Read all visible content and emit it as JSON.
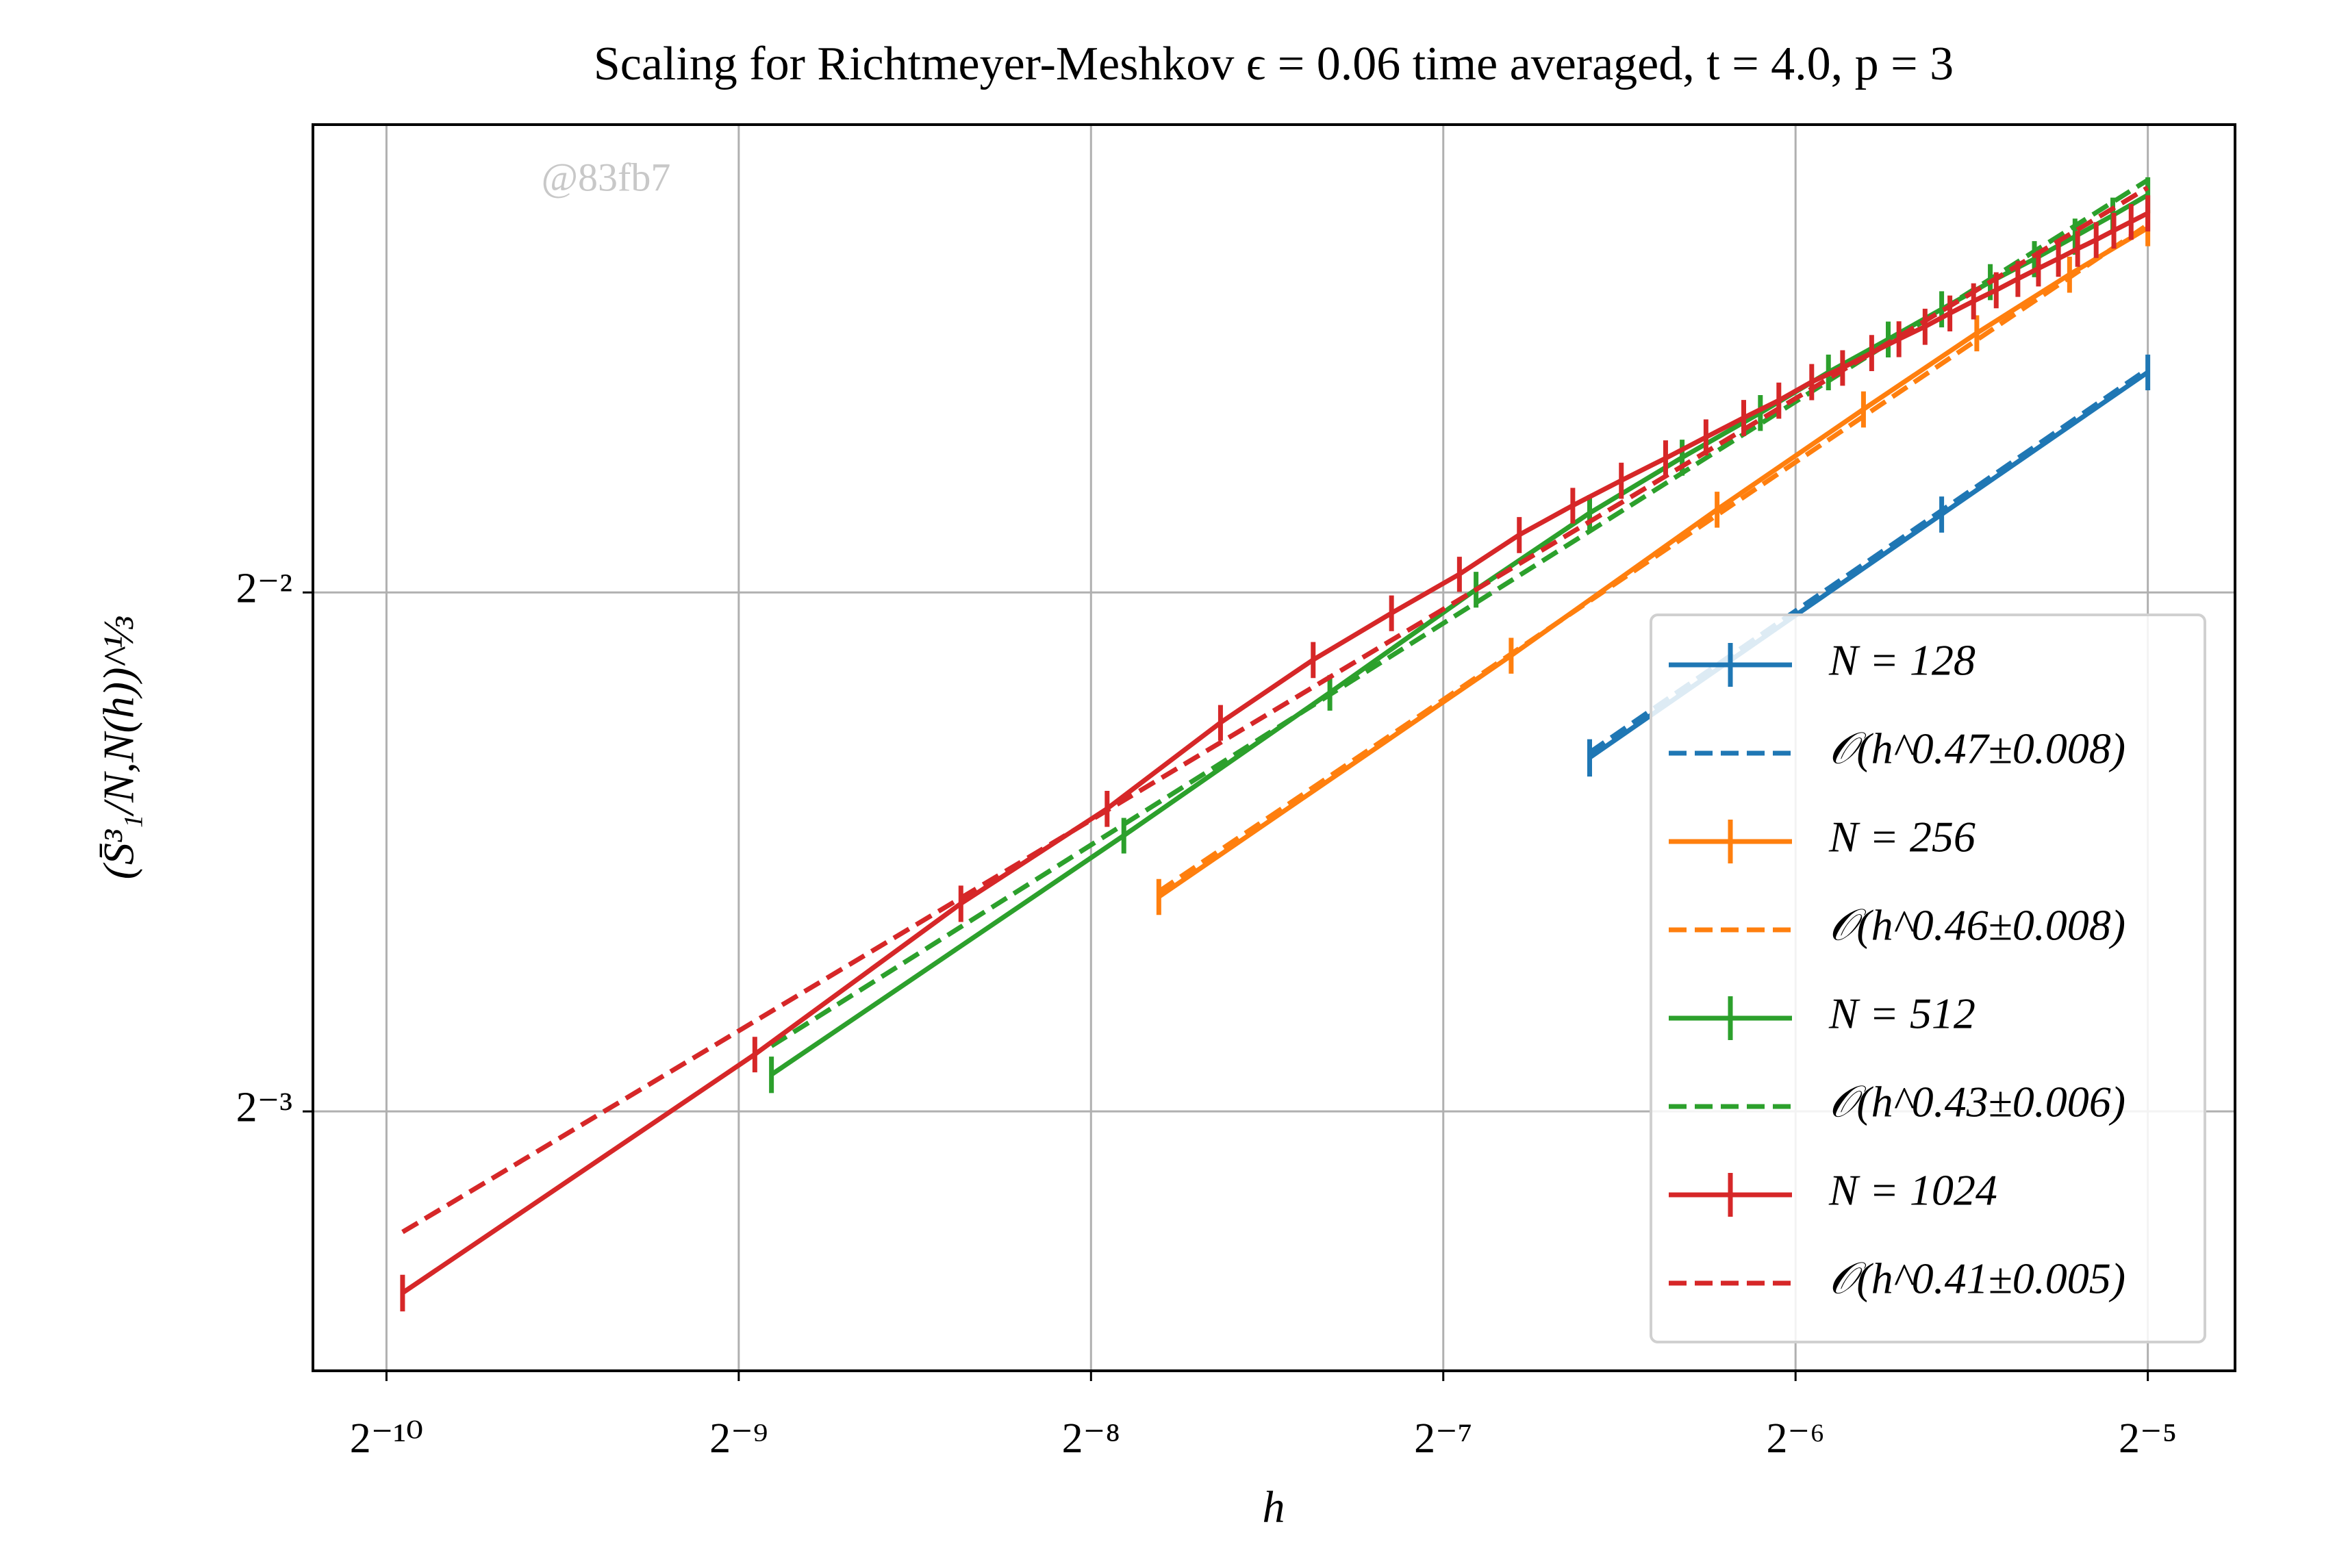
{
  "chart_data": {
    "type": "line",
    "title": "Scaling for Richtmeyer-Meshkov ϵ = 0.06 time averaged, t = 4.0, p = 3",
    "xlabel": "h",
    "ylabel": "(S̄³₁/N,N(h))^⅓",
    "watermark": "@83fb7",
    "xscale": "log2",
    "yscale": "log2",
    "xlim": [
      0.000845,
      0.0371
    ],
    "ylim": [
      0.0884,
      0.467
    ],
    "xticks": [
      {
        "value": 0.0009765625,
        "label": "2⁻¹⁰"
      },
      {
        "value": 0.001953125,
        "label": "2⁻⁹"
      },
      {
        "value": 0.00390625,
        "label": "2⁻⁸"
      },
      {
        "value": 0.0078125,
        "label": "2⁻⁷"
      },
      {
        "value": 0.015625,
        "label": "2⁻⁶"
      },
      {
        "value": 0.03125,
        "label": "2⁻⁵"
      }
    ],
    "yticks": [
      {
        "value": 0.125,
        "label": "2⁻³"
      },
      {
        "value": 0.25,
        "label": "2⁻²"
      }
    ],
    "grid": true,
    "legend": "lower right",
    "series": [
      {
        "name": "N = 128",
        "color": "#1f77b4",
        "linestyle": "solid",
        "x": [
          0.01042,
          0.02083,
          0.03125
        ],
        "values": [
          0.2005,
          0.2775,
          0.3355
        ],
        "errors": [
          0.005,
          0.0067,
          0.008
        ]
      },
      {
        "name": "𝒪(h^0.47±0.008)",
        "color": "#1f77b4",
        "linestyle": "dashed",
        "x": [
          0.01042,
          0.03125
        ],
        "values": [
          0.2019,
          0.337
        ]
      },
      {
        "name": "N = 256",
        "color": "#ff7f0e",
        "linestyle": "solid",
        "x": [
          0.004464,
          0.008929,
          0.01339,
          0.01786,
          0.02232,
          0.02679,
          0.03125
        ],
        "values": [
          0.1665,
          0.2298,
          0.2793,
          0.3193,
          0.3535,
          0.3823,
          0.4068
        ],
        "errors": [
          0.004,
          0.0055,
          0.0067,
          0.0077,
          0.0085,
          0.0092,
          0.0098
        ]
      },
      {
        "name": "𝒪(h^0.46±0.008)",
        "color": "#ff7f0e",
        "linestyle": "dashed",
        "x": [
          0.004464,
          0.03125
        ],
        "values": [
          0.1677,
          0.4086
        ]
      },
      {
        "name": "N = 512",
        "color": "#2ca02c",
        "linestyle": "solid",
        "x": [
          0.002083,
          0.004167,
          0.00625,
          0.008333,
          0.01042,
          0.0125,
          0.01458,
          0.01667,
          0.01875,
          0.02083,
          0.02292,
          0.025,
          0.02708,
          0.02917,
          0.03125
        ],
        "values": [
          0.1313,
          0.1807,
          0.2187,
          0.251,
          0.278,
          0.2994,
          0.3178,
          0.3355,
          0.3506,
          0.365,
          0.3785,
          0.3903,
          0.4022,
          0.4137,
          0.4251
        ],
        "errors": [
          0.0032,
          0.0043,
          0.0052,
          0.006,
          0.0067,
          0.0072,
          0.0076,
          0.008,
          0.0084,
          0.0088,
          0.0091,
          0.0094,
          0.0097,
          0.0099,
          0.0102
        ]
      },
      {
        "name": "𝒪(h^0.43±0.006)",
        "color": "#2ca02c",
        "linestyle": "dashed",
        "x": [
          0.002083,
          0.03125
        ],
        "values": [
          0.1364,
          0.4337
        ]
      },
      {
        "name": "N = 1024",
        "color": "#d62728",
        "linestyle": "solid",
        "x": [
          0.001008,
          0.002016,
          0.003024,
          0.004032,
          0.00504,
          0.006048,
          0.007056,
          0.008065,
          0.009073,
          0.01008,
          0.01109,
          0.0121,
          0.0131,
          0.01411,
          0.01512,
          0.01613,
          0.01714,
          0.01815,
          0.01915,
          0.02016,
          0.02117,
          0.02218,
          0.02319,
          0.0242,
          0.0252,
          0.02621,
          0.02722,
          0.02823,
          0.02923,
          0.03024,
          0.03125
        ],
        "values": [
          0.0981,
          0.1349,
          0.165,
          0.1873,
          0.2101,
          0.2285,
          0.2432,
          0.2562,
          0.27,
          0.2808,
          0.2903,
          0.2991,
          0.3076,
          0.3157,
          0.3231,
          0.3312,
          0.3375,
          0.3443,
          0.3507,
          0.3566,
          0.363,
          0.3689,
          0.3744,
          0.3801,
          0.3854,
          0.3905,
          0.3957,
          0.4004,
          0.4054,
          0.4102,
          0.4149
        ],
        "errors": [
          0.0024,
          0.0032,
          0.004,
          0.0045,
          0.005,
          0.0055,
          0.0058,
          0.006,
          0.0065,
          0.0067,
          0.007,
          0.0072,
          0.0074,
          0.0076,
          0.0078,
          0.008,
          0.008,
          0.0083,
          0.0084,
          0.0086,
          0.0087,
          0.0089,
          0.009,
          0.0091,
          0.0092,
          0.0094,
          0.0095,
          0.0096,
          0.0097,
          0.0098,
          0.01
        ]
      },
      {
        "name": "𝒪(h^0.41±0.005)",
        "color": "#d62728",
        "linestyle": "dashed",
        "x": [
          0.001008,
          0.03125
        ],
        "values": [
          0.1064,
          0.4293
        ]
      }
    ]
  }
}
